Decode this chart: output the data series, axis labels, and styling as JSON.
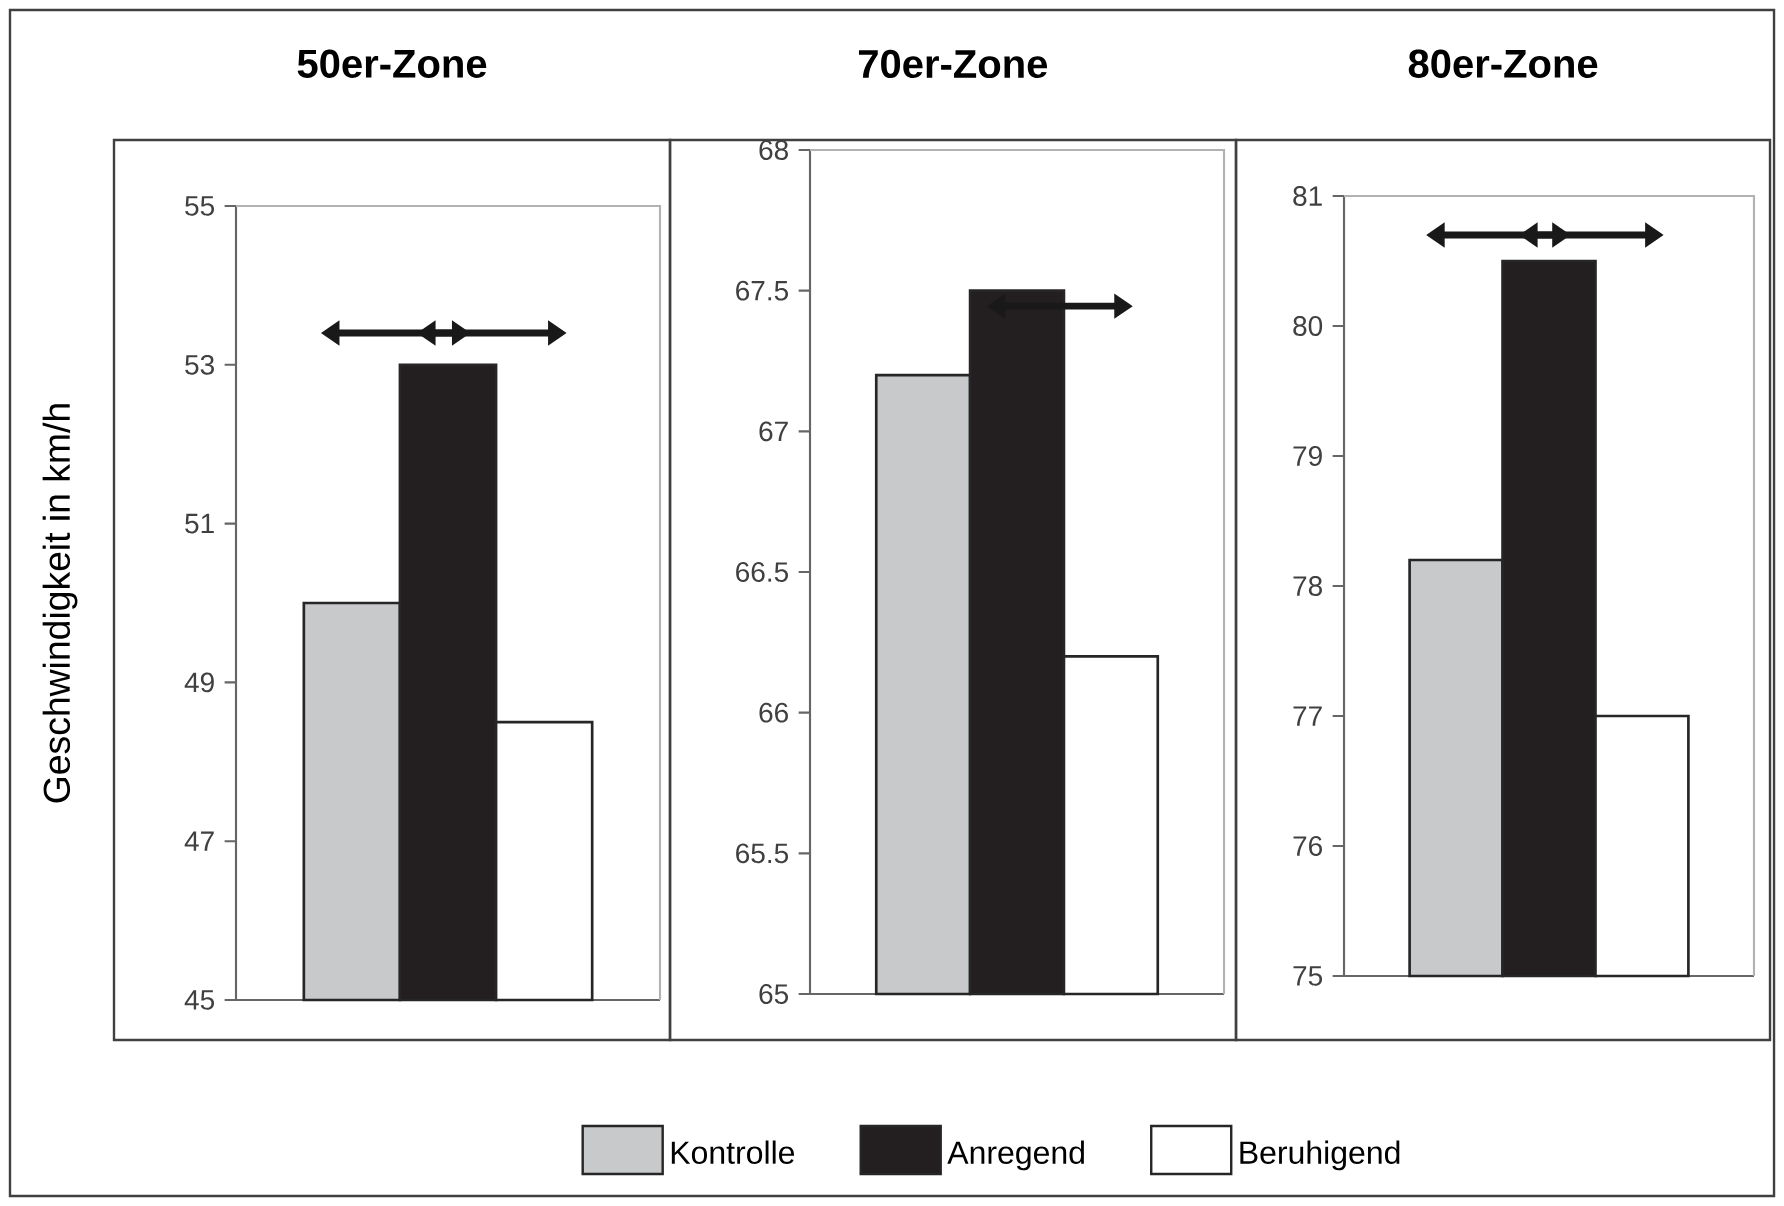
{
  "chart_data": [
    {
      "type": "bar",
      "title": "50er-Zone",
      "ylabel": "Geschwindigkeit in km/h",
      "categories": [
        null
      ],
      "ylim": [
        45,
        55
      ],
      "yticks": [
        45,
        47,
        49,
        51,
        53,
        55
      ],
      "legend": "bottom",
      "series": [
        {
          "name": "Kontrolle",
          "color": "#c8c9cb",
          "values": [
            50
          ]
        },
        {
          "name": "Anregend",
          "color": "#231f20",
          "values": [
            53
          ]
        },
        {
          "name": "Beruhigend",
          "color": "#ffffff",
          "values": [
            48.5
          ]
        }
      ]
    },
    {
      "type": "bar",
      "title": "70er-Zone",
      "categories": [
        null
      ],
      "ylim": [
        65,
        68
      ],
      "yticks": [
        65,
        65.5,
        66,
        66.5,
        67,
        67.5,
        68
      ],
      "series": [
        {
          "color": "#c8c9cb",
          "values": [
            67.2
          ]
        },
        {
          "color": "#231f20",
          "values": [
            67.5
          ]
        },
        {
          "color": "#ffffff",
          "values": [
            66.2
          ]
        }
      ]
    },
    {
      "type": "bar",
      "title": "80er-Zone",
      "categories": [
        null
      ],
      "ylim": [
        75,
        81
      ],
      "yticks": [
        75,
        76,
        77,
        78,
        79,
        80,
        81
      ],
      "series": [
        {
          "color": "#c8c9cb",
          "values": [
            78.2
          ]
        },
        {
          "color": "#231f20",
          "values": [
            80.5
          ]
        },
        {
          "color": "#ffffff",
          "values": [
            77
          ]
        }
      ]
    }
  ]
}
